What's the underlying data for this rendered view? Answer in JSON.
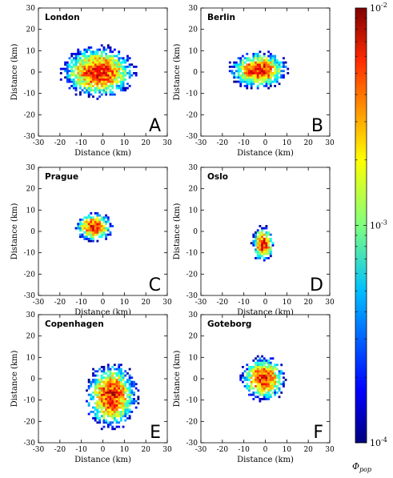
{
  "chart_data": {
    "type": "heatmap",
    "xlabel": "Distance (km)",
    "ylabel": "Distance (km)",
    "xlim": [
      -30,
      30
    ],
    "ylim": [
      -30,
      30
    ],
    "x_ticks": [
      -30,
      -20,
      -10,
      0,
      10,
      20,
      30
    ],
    "y_ticks": [
      -30,
      -20,
      -10,
      0,
      10,
      20,
      30
    ],
    "colorscale": "jet",
    "colorbar": {
      "scale": "log",
      "range": [
        0.0001,
        0.01
      ],
      "label": "Φpop",
      "tick_labels": [
        {
          "base": "10",
          "exp": "-2"
        },
        {
          "base": "10",
          "exp": "-3"
        },
        {
          "base": "10",
          "exp": "-4"
        }
      ]
    },
    "panels": [
      {
        "city": "London",
        "letter": "A",
        "center": [
          -2,
          0
        ],
        "spread": [
          10,
          7
        ],
        "peak": 0.01
      },
      {
        "city": "Berlin",
        "letter": "B",
        "center": [
          -3,
          1
        ],
        "spread": [
          8,
          5
        ],
        "peak": 0.01
      },
      {
        "city": "Prague",
        "letter": "C",
        "center": [
          -4,
          2
        ],
        "spread": [
          5,
          4
        ],
        "peak": 0.01
      },
      {
        "city": "Oslo",
        "letter": "D",
        "center": [
          -1,
          -6
        ],
        "spread": [
          3,
          5
        ],
        "peak": 0.01
      },
      {
        "city": "Copenhagen",
        "letter": "E",
        "center": [
          4,
          -8
        ],
        "spread": [
          7,
          9
        ],
        "peak": 0.01
      },
      {
        "city": "Goteborg",
        "letter": "F",
        "center": [
          -1,
          0
        ],
        "spread": [
          6,
          6
        ],
        "peak": 0.01
      }
    ]
  }
}
